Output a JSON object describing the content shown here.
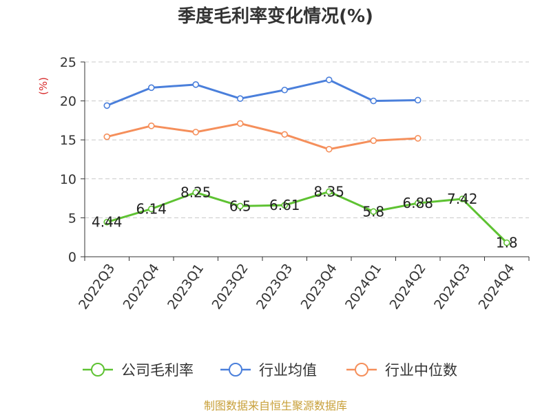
{
  "chart_data": {
    "type": "line",
    "title": "季度毛利率变化情况(%)",
    "xlabel": "",
    "ylabel": "(%)",
    "ylim": [
      0,
      25
    ],
    "yticks": [
      0,
      5,
      10,
      15,
      20,
      25
    ],
    "grid": true,
    "legend_position": "bottom",
    "categories": [
      "2022Q3",
      "2022Q4",
      "2023Q1",
      "2023Q2",
      "2023Q3",
      "2023Q4",
      "2024Q1",
      "2024Q2",
      "2024Q3",
      "2024Q4"
    ],
    "series": [
      {
        "name": "公司毛利率",
        "color": "#5ec232",
        "values": [
          4.44,
          6.14,
          8.25,
          6.5,
          6.61,
          8.35,
          5.8,
          6.88,
          7.42,
          1.8
        ],
        "labels": [
          "4.44",
          "6.14",
          "8.25",
          "6.5",
          "6.61",
          "8.35",
          "5.8",
          "6.88",
          "7.42",
          "1.8"
        ],
        "show_labels": true
      },
      {
        "name": "行业均值",
        "color": "#4a7fdb",
        "values": [
          19.4,
          21.7,
          22.1,
          20.3,
          21.4,
          22.7,
          20.0,
          20.1,
          null,
          null
        ]
      },
      {
        "name": "行业中位数",
        "color": "#f58f5b",
        "values": [
          15.4,
          16.8,
          16.0,
          17.1,
          15.7,
          13.8,
          14.9,
          15.2,
          null,
          null
        ]
      }
    ]
  },
  "source": "制图数据来自恒生聚源数据库"
}
